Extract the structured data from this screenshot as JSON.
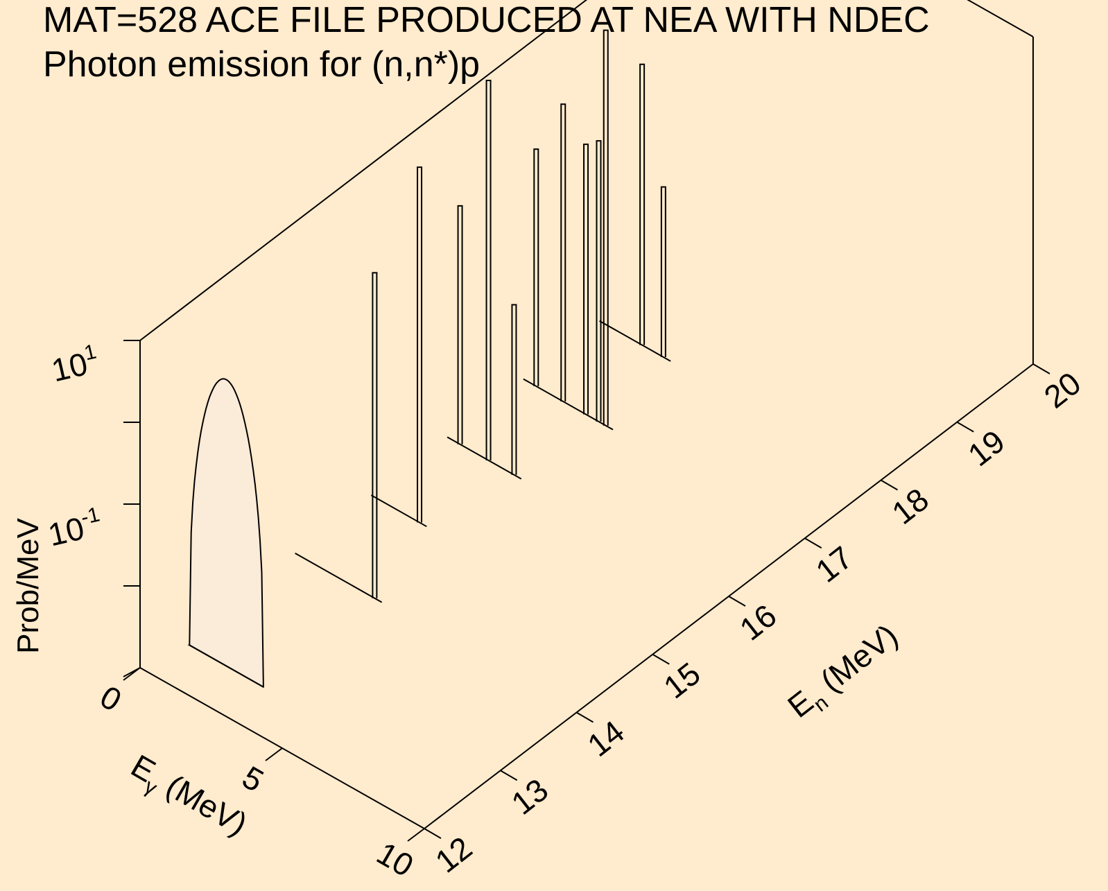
{
  "title": "MAT=528 ACE FILE PRODUCED AT NEA WITH NDEC",
  "subtitle": "Photon emission for (n,n*)p",
  "colors": {
    "background": "#ffebcd",
    "line": "#000000",
    "fill": "#fbebd9"
  },
  "chart_data": {
    "type": "3d-waterfall",
    "title": "MAT=528 ACE FILE PRODUCED AT NEA WITH NDEC",
    "subtitle": "Photon emission for (n,n*)p",
    "zlabel": "Prob/MeV",
    "xlabel": {
      "base": "E",
      "sub": "γ",
      "rest": " (MeV)"
    },
    "ylabel": {
      "base": "E",
      "sub": "n",
      "rest": " (MeV)"
    },
    "x_range": [
      0,
      10
    ],
    "y_range": [
      12,
      20
    ],
    "z_scale": "log",
    "z_range": [
      0.001,
      10
    ],
    "x_ticks": [
      "0",
      "5",
      "10"
    ],
    "y_ticks": [
      "12",
      "13",
      "14",
      "15",
      "16",
      "17",
      "18",
      "19",
      "20"
    ],
    "z_ticks": [
      {
        "base": "10",
        "exp": "1",
        "value": 10
      },
      {
        "base": "10",
        "exp": "-1",
        "value": 0.1
      }
    ],
    "z_minor_values": [
      1,
      0.01
    ],
    "continuum": {
      "en": 12.5,
      "x_start": 0.4,
      "x_end": 3.0,
      "peak_x": 1.7,
      "peak_z": 3.16
    },
    "series": [
      {
        "en": 14.0,
        "lines": [
          {
            "x": 2.9,
            "z": 9.5
          }
        ]
      },
      {
        "en": 15.0,
        "lines": [
          {
            "x": 1.8,
            "z": 22
          }
        ]
      },
      {
        "en": 16.0,
        "lines": [
          {
            "x": 0.55,
            "z": 0.82
          },
          {
            "x": 1.55,
            "z": 44
          },
          {
            "x": 2.45,
            "z": 0.12
          }
        ]
      },
      {
        "en": 17.0,
        "lines": [
          {
            "x": 0.55,
            "z": 0.79
          },
          {
            "x": 1.5,
            "z": 4.3
          },
          {
            "x": 2.3,
            "z": 2.0
          },
          {
            "x": 2.75,
            "z": 2.7
          },
          {
            "x": 3.0,
            "z": 68
          }
        ]
      },
      {
        "en": 18.0,
        "lines": [
          {
            "x": 1.6,
            "z": 2.7
          },
          {
            "x": 2.35,
            "z": 0.12
          }
        ]
      }
    ]
  }
}
